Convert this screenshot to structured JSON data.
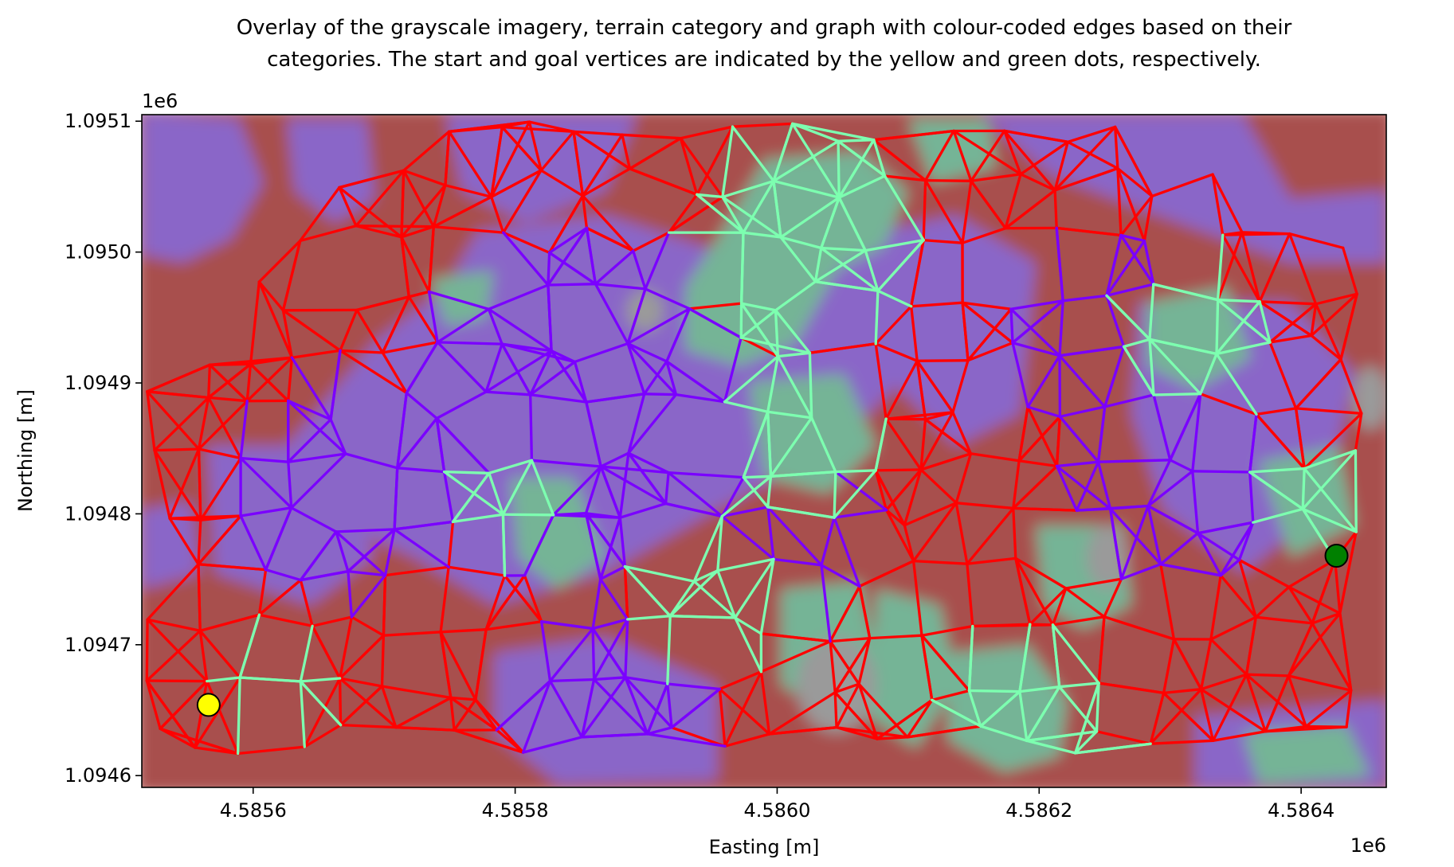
{
  "chart_data": {
    "type": "scatter",
    "title_lines": [
      "Overlay of the grayscale imagery, terrain category and graph with colour-coded edges based on their",
      "categories. The start and goal vertices are indicated by the yellow and green dots, respectively."
    ],
    "xlabel": "Easting [m]",
    "ylabel": "Northing [m]",
    "x_offset_label": "1e6",
    "y_offset_label": "1e6",
    "xlim": [
      4.585515,
      4.586465
    ],
    "ylim": [
      1.094591,
      1.095105
    ],
    "x_ticks": [
      4.5856,
      4.5858,
      4.586,
      4.5862,
      4.5864
    ],
    "x_tick_labels": [
      "4.5856",
      "4.5858",
      "4.5860",
      "4.5862",
      "4.5864"
    ],
    "y_ticks": [
      1.0946,
      1.0947,
      1.0948,
      1.0949,
      1.095,
      1.0951
    ],
    "y_tick_labels": [
      "1.0946",
      "1.0947",
      "1.0948",
      "1.0949",
      "1.0950",
      "1.0951"
    ],
    "grid": false,
    "legend": "none",
    "edge_colors": {
      "red": "#ff0000",
      "purple": "#7a00ff",
      "green": "#7dffb0"
    },
    "terrain_colors": {
      "red": "#a8504e",
      "purple": "#8a66c8",
      "green": "#74b496",
      "gray": "#9a9a9a"
    },
    "points": [
      {
        "name": "start",
        "x": 4.585566,
        "y": 1.094654,
        "color": "#ffff00"
      },
      {
        "name": "goal",
        "x": 4.586427,
        "y": 1.094768,
        "color": "#008000"
      }
    ]
  }
}
